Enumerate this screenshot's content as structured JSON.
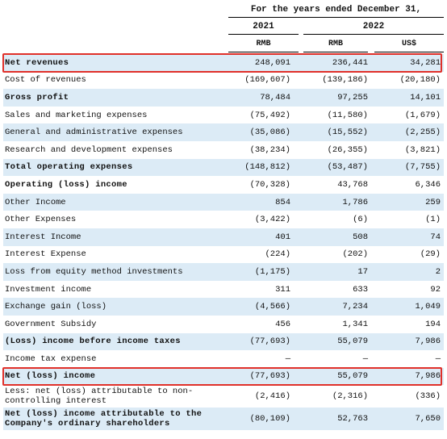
{
  "header": {
    "period": "For the  years ended December  31,",
    "years": [
      "2021",
      "2022"
    ],
    "currencies": [
      "RMB",
      "RMB",
      "US$"
    ]
  },
  "rows": [
    {
      "label": "Net revenues",
      "v": [
        "248,091",
        "236,441",
        "34,281"
      ],
      "bold": true,
      "shade": true,
      "highlight": true
    },
    {
      "label": "Cost of revenues",
      "v": [
        "(169,607)",
        "(139,186)",
        "(20,180)"
      ]
    },
    {
      "label": "Gross profit",
      "v": [
        "78,484",
        "97,255",
        "14,101"
      ],
      "bold": true,
      "shade": true
    },
    {
      "label": "Sales and marketing expenses",
      "v": [
        "(75,492)",
        "(11,580)",
        "(1,679)"
      ]
    },
    {
      "label": "General and administrative expenses",
      "v": [
        "(35,086)",
        "(15,552)",
        "(2,255)"
      ],
      "shade": true
    },
    {
      "label": "Research and development expenses",
      "v": [
        "(38,234)",
        "(26,355)",
        "(3,821)"
      ]
    },
    {
      "label": "Total operating expenses",
      "v": [
        "(148,812)",
        "(53,487)",
        "(7,755)"
      ],
      "bold": true,
      "shade": true
    },
    {
      "label": "Operating (loss) income",
      "v": [
        "(70,328)",
        "43,768",
        "6,346"
      ],
      "bold": true
    },
    {
      "label": "Other Income",
      "v": [
        "854",
        "1,786",
        "259"
      ],
      "shade": true
    },
    {
      "label": "Other Expenses",
      "v": [
        "(3,422)",
        "(6)",
        "(1)"
      ]
    },
    {
      "label": "Interest Income",
      "v": [
        "401",
        "508",
        "74"
      ],
      "shade": true
    },
    {
      "label": "Interest Expense",
      "v": [
        "(224)",
        "(202)",
        "(29)"
      ]
    },
    {
      "label": "Loss from equity method investments",
      "v": [
        "(1,175)",
        "17",
        "2"
      ],
      "shade": true
    },
    {
      "label": "Investment income",
      "v": [
        "311",
        "633",
        "92"
      ]
    },
    {
      "label": "Exchange gain (loss)",
      "v": [
        "(4,566)",
        "7,234",
        "1,049"
      ],
      "shade": true
    },
    {
      "label": "Government Subsidy",
      "v": [
        "456",
        "1,341",
        "194"
      ]
    },
    {
      "label": "(Loss) income before income taxes",
      "v": [
        "(77,693)",
        "55,079",
        "7,986"
      ],
      "bold": true,
      "shade": true
    },
    {
      "label": "Income tax expense",
      "v": [
        "—",
        "—",
        "—"
      ]
    },
    {
      "label": "Net (loss) income",
      "v": [
        "(77,693)",
        "55,079",
        "7,986"
      ],
      "bold": true,
      "shade": true,
      "highlight": true
    },
    {
      "label": "Less: net (loss) attributable to non-controlling interest",
      "v": [
        "(2,416)",
        "(2,316)",
        "(336)"
      ],
      "tall": true
    },
    {
      "label": "Net (loss) income attributable to the Company's ordinary shareholders",
      "v": [
        "(80,109)",
        "52,763",
        "7,650"
      ],
      "bold": true,
      "shade": true,
      "tall": true
    }
  ],
  "colors": {
    "shade": "#dcebf6",
    "highlight": "#e0302a"
  }
}
